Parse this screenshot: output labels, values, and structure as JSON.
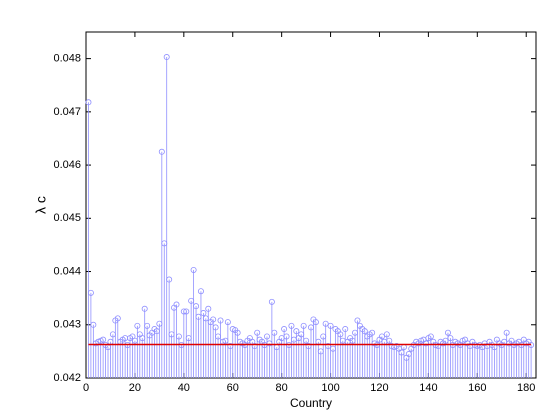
{
  "chart_data": {
    "type": "stem",
    "xlabel": "Country",
    "ylabel": "λ c",
    "xlim": [
      0,
      184
    ],
    "xticks": [
      0,
      20,
      40,
      60,
      80,
      100,
      120,
      140,
      160,
      180
    ],
    "ylim": [
      0.042,
      0.0485
    ],
    "yticks": [
      0.042,
      0.043,
      0.044,
      0.045,
      0.046,
      0.047,
      0.048
    ],
    "color": "#8f8fff",
    "reference_line": {
      "value": 0.04263,
      "color": "#e00000"
    },
    "x": [
      1,
      2,
      3,
      4,
      5,
      6,
      7,
      8,
      9,
      10,
      11,
      12,
      13,
      14,
      15,
      16,
      17,
      18,
      19,
      20,
      21,
      22,
      23,
      24,
      25,
      26,
      27,
      28,
      29,
      30,
      31,
      32,
      33,
      34,
      35,
      36,
      37,
      38,
      39,
      40,
      41,
      42,
      43,
      44,
      45,
      46,
      47,
      48,
      49,
      50,
      51,
      52,
      53,
      54,
      55,
      56,
      57,
      58,
      59,
      60,
      61,
      62,
      63,
      64,
      65,
      66,
      67,
      68,
      69,
      70,
      71,
      72,
      73,
      74,
      75,
      76,
      77,
      78,
      79,
      80,
      81,
      82,
      83,
      84,
      85,
      86,
      87,
      88,
      89,
      90,
      91,
      92,
      93,
      94,
      95,
      96,
      97,
      98,
      99,
      100,
      101,
      102,
      103,
      104,
      105,
      106,
      107,
      108,
      109,
      110,
      111,
      112,
      113,
      114,
      115,
      116,
      117,
      118,
      119,
      120,
      121,
      122,
      123,
      124,
      125,
      126,
      127,
      128,
      129,
      130,
      131,
      132,
      133,
      134,
      135,
      136,
      137,
      138,
      139,
      140,
      141,
      142,
      143,
      144,
      145,
      146,
      147,
      148,
      149,
      150,
      151,
      152,
      153,
      154,
      155,
      156,
      157,
      158,
      159,
      160,
      161,
      162,
      163,
      164,
      165,
      166,
      167,
      168,
      169,
      170,
      171,
      172,
      173,
      174,
      175,
      176,
      177,
      178,
      179,
      180,
      181,
      182
    ],
    "values": [
      0.04718,
      0.0436,
      0.043,
      0.04265,
      0.04268,
      0.0427,
      0.04272,
      0.04262,
      0.04258,
      0.04268,
      0.04282,
      0.04308,
      0.04312,
      0.04268,
      0.04272,
      0.04275,
      0.04262,
      0.04275,
      0.04278,
      0.0427,
      0.04298,
      0.04282,
      0.04275,
      0.0433,
      0.04298,
      0.0428,
      0.04285,
      0.04292,
      0.04288,
      0.04302,
      0.04625,
      0.04453,
      0.04803,
      0.04385,
      0.04282,
      0.04332,
      0.04338,
      0.04278,
      0.04262,
      0.04325,
      0.04325,
      0.04275,
      0.04345,
      0.04403,
      0.04335,
      0.04315,
      0.04363,
      0.04322,
      0.04312,
      0.0433,
      0.04305,
      0.0431,
      0.04295,
      0.04278,
      0.04308,
      0.04268,
      0.0427,
      0.04305,
      0.0426,
      0.04292,
      0.0429,
      0.04285,
      0.04268,
      0.04265,
      0.04262,
      0.0427,
      0.04275,
      0.04268,
      0.0426,
      0.04285,
      0.04272,
      0.04268,
      0.04262,
      0.04278,
      0.04265,
      0.04343,
      0.04285,
      0.04258,
      0.04268,
      0.04275,
      0.04292,
      0.04278,
      0.04262,
      0.04298,
      0.04272,
      0.04288,
      0.04275,
      0.04282,
      0.04298,
      0.0427,
      0.0426,
      0.04295,
      0.0431,
      0.04305,
      0.04268,
      0.0425,
      0.04278,
      0.04302,
      0.0426,
      0.04298,
      0.04255,
      0.04292,
      0.04288,
      0.04282,
      0.0427,
      0.04292,
      0.04268,
      0.04275,
      0.0427,
      0.04285,
      0.04308,
      0.04298,
      0.04292,
      0.04288,
      0.04278,
      0.04282,
      0.04285,
      0.04265,
      0.04262,
      0.04272,
      0.04278,
      0.04268,
      0.04282,
      0.0427,
      0.0426,
      0.04258,
      0.0426,
      0.04255,
      0.04248,
      0.04258,
      0.04238,
      0.04245,
      0.04255,
      0.04262,
      0.04268,
      0.04265,
      0.0427,
      0.04272,
      0.04265,
      0.04275,
      0.04278,
      0.04268,
      0.04262,
      0.0426,
      0.04268,
      0.04265,
      0.0427,
      0.04285,
      0.04275,
      0.04262,
      0.04268,
      0.04265,
      0.04262,
      0.0427,
      0.04272,
      0.04265,
      0.0426,
      0.04268,
      0.04262,
      0.0426,
      0.04262,
      0.04258,
      0.04265,
      0.0426,
      0.04268,
      0.04262,
      0.04258,
      0.04272,
      0.04265,
      0.04262,
      0.04268,
      0.04285,
      0.04265,
      0.0427,
      0.04262,
      0.04265,
      0.04268,
      0.04262,
      0.04272,
      0.04265,
      0.04268,
      0.04262
    ]
  }
}
